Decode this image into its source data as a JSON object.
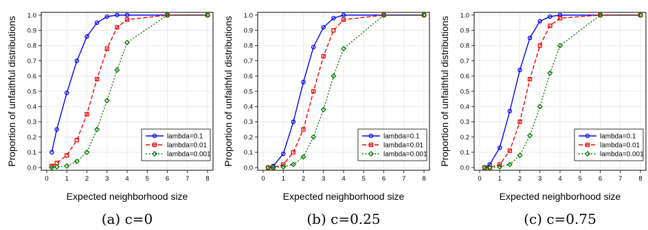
{
  "chart_data": [
    {
      "type": "line",
      "caption": "(a)  c=0",
      "xlabel": "Expected neighborhood size",
      "ylabel": "Proportion of unfaithful distributions",
      "xlim": [
        0,
        8
      ],
      "ylim": [
        0,
        1
      ],
      "xticks": [
        "0",
        "1",
        "2",
        "3",
        "4",
        "5",
        "6",
        "7",
        "8"
      ],
      "yticks": [
        "0.0",
        "0.1",
        "0.2",
        "0.3",
        "0.4",
        "0.5",
        "0.6",
        "0.7",
        "0.8",
        "0.9",
        "1.0"
      ],
      "grid": true,
      "legend": "bottom-right",
      "x": [
        0.25,
        0.5,
        1,
        1.5,
        2,
        2.5,
        3,
        3.5,
        4,
        6,
        8
      ],
      "series": [
        {
          "name": "lambda=0.1",
          "color": "#0000ee",
          "marker": "circle",
          "dash": "solid",
          "values": [
            0.1,
            0.25,
            0.49,
            0.7,
            0.86,
            0.95,
            0.99,
            1.0,
            1.0,
            1.0,
            1.0
          ]
        },
        {
          "name": "lambda=0.01",
          "color": "#ee0000",
          "marker": "square",
          "dash": "dashed",
          "values": [
            0.01,
            0.03,
            0.08,
            0.18,
            0.35,
            0.58,
            0.78,
            0.92,
            0.97,
            1.0,
            1.0
          ]
        },
        {
          "name": "lambda=0.001",
          "color": "#007700",
          "marker": "diamond",
          "dash": "dotted",
          "values": [
            0.0,
            0.005,
            0.01,
            0.04,
            0.1,
            0.25,
            0.44,
            0.64,
            0.82,
            1.0,
            1.0
          ]
        }
      ]
    },
    {
      "type": "line",
      "caption": "(b)  c=0.25",
      "xlabel": "Expected neighborhood size",
      "ylabel": "Proportion of unfaithful distributions",
      "xlim": [
        0,
        8
      ],
      "ylim": [
        0,
        1
      ],
      "xticks": [
        "0",
        "1",
        "2",
        "3",
        "4",
        "5",
        "6",
        "7",
        "8"
      ],
      "yticks": [
        "0.0",
        "0.1",
        "0.2",
        "0.3",
        "0.4",
        "0.5",
        "0.6",
        "0.7",
        "0.8",
        "0.9",
        "1.0"
      ],
      "grid": true,
      "legend": "bottom-right",
      "x": [
        0.25,
        0.5,
        1,
        1.5,
        2,
        2.5,
        3,
        3.5,
        4,
        6,
        8
      ],
      "series": [
        {
          "name": "lambda=0.1",
          "color": "#0000ee",
          "marker": "circle",
          "dash": "solid",
          "values": [
            0.0,
            0.01,
            0.09,
            0.3,
            0.56,
            0.79,
            0.92,
            0.98,
            1.0,
            1.0,
            1.0
          ]
        },
        {
          "name": "lambda=0.01",
          "color": "#ee0000",
          "marker": "square",
          "dash": "dashed",
          "values": [
            0.0,
            0.0,
            0.02,
            0.1,
            0.25,
            0.5,
            0.73,
            0.9,
            0.97,
            1.0,
            1.0
          ]
        },
        {
          "name": "lambda=0.001",
          "color": "#007700",
          "marker": "diamond",
          "dash": "dotted",
          "values": [
            0.0,
            0.0,
            0.005,
            0.02,
            0.07,
            0.2,
            0.38,
            0.6,
            0.78,
            1.0,
            1.0
          ]
        }
      ]
    },
    {
      "type": "line",
      "caption": "(c)  c=0.75",
      "xlabel": "Expected neighborhood size",
      "ylabel": "Proportion of unfaithful distributions",
      "xlim": [
        0,
        8
      ],
      "ylim": [
        0,
        1
      ],
      "xticks": [
        "0",
        "1",
        "2",
        "3",
        "4",
        "5",
        "6",
        "7",
        "8"
      ],
      "yticks": [
        "0.0",
        "0.1",
        "0.2",
        "0.3",
        "0.4",
        "0.5",
        "0.6",
        "0.7",
        "0.8",
        "0.9",
        "1.0"
      ],
      "grid": true,
      "legend": "bottom-right",
      "x": [
        0.25,
        0.5,
        1,
        1.5,
        2,
        2.5,
        3,
        3.5,
        4,
        6,
        8
      ],
      "series": [
        {
          "name": "lambda=0.1",
          "color": "#0000ee",
          "marker": "circle",
          "dash": "solid",
          "values": [
            0.0,
            0.02,
            0.13,
            0.37,
            0.64,
            0.85,
            0.96,
            0.99,
            1.0,
            1.0,
            1.0
          ]
        },
        {
          "name": "lambda=0.01",
          "color": "#ee0000",
          "marker": "square",
          "dash": "dashed",
          "values": [
            0.0,
            0.0,
            0.02,
            0.11,
            0.3,
            0.58,
            0.8,
            0.93,
            0.98,
            1.0,
            1.0
          ]
        },
        {
          "name": "lambda=0.001",
          "color": "#007700",
          "marker": "diamond",
          "dash": "dotted",
          "values": [
            0.0,
            0.0,
            0.005,
            0.02,
            0.08,
            0.21,
            0.4,
            0.62,
            0.8,
            1.0,
            1.0
          ]
        }
      ]
    }
  ]
}
